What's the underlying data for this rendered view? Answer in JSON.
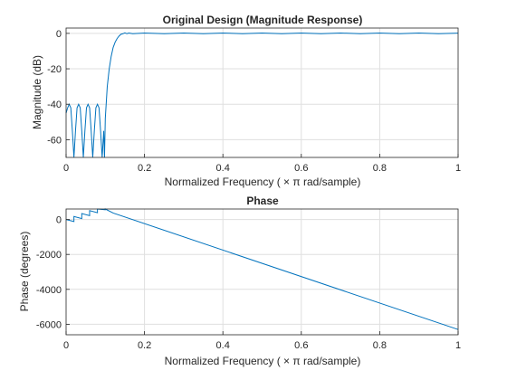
{
  "colors": {
    "series": "#0072bd",
    "axis": "#262626",
    "grid": "#dfdfdf"
  },
  "chart_data": [
    {
      "type": "line",
      "title": "Original Design (Magnitude Response)",
      "xlabel": "Normalized  Frequency    ( × π  rad/sample)",
      "ylabel": "Magnitude (dB)",
      "xlim": [
        0,
        1
      ],
      "ylim": [
        -70,
        3
      ],
      "xticks": [
        0,
        0.2,
        0.4,
        0.6,
        0.8,
        1
      ],
      "xtick_labels": [
        "0",
        "0.2",
        "0.4",
        "0.6",
        "0.8",
        "1"
      ],
      "yticks": [
        0,
        -20,
        -40,
        -60
      ],
      "ytick_labels": [
        "0",
        "-20",
        "-40",
        "-60"
      ],
      "grid": true,
      "series": [
        {
          "x": [
            0,
            0.004,
            0.008,
            0.012,
            0.016,
            0.02,
            0.024,
            0.028,
            0.032,
            0.036,
            0.04,
            0.044,
            0.048,
            0.052,
            0.056,
            0.06,
            0.064,
            0.068,
            0.072,
            0.076,
            0.08,
            0.084,
            0.088,
            0.092,
            0.096,
            0.098,
            0.1,
            0.105,
            0.11,
            0.115,
            0.12,
            0.125,
            0.13,
            0.135,
            0.14,
            0.145,
            0.15,
            0.155,
            0.16,
            0.17,
            0.2,
            0.25,
            0.3,
            0.35,
            0.4,
            0.45,
            0.5,
            0.55,
            0.6,
            0.65,
            0.7,
            0.75,
            0.8,
            0.85,
            0.9,
            0.95,
            1.0
          ],
          "y": [
            -45,
            -42,
            -40,
            -42,
            -55,
            -70,
            -55,
            -42,
            -40,
            -42,
            -55,
            -70,
            -55,
            -42,
            -40,
            -42,
            -55,
            -70,
            -55,
            -42,
            -40,
            -42,
            -55,
            -70,
            -55,
            -70,
            -48,
            -30,
            -20,
            -13,
            -8,
            -5,
            -3,
            -1.5,
            -0.5,
            -0.2,
            0.3,
            -0.2,
            0.2,
            -0.2,
            0.2,
            -0.2,
            0.2,
            -0.2,
            0.2,
            -0.2,
            0.2,
            -0.2,
            0.2,
            -0.2,
            0.2,
            -0.2,
            0.2,
            -0.2,
            0.2,
            -0.2,
            0.1
          ]
        }
      ]
    },
    {
      "type": "line",
      "title": "Phase",
      "xlabel": "Normalized  Frequency    ( × π  rad/sample)",
      "ylabel": "Phase (degrees)",
      "xlim": [
        0,
        1
      ],
      "ylim": [
        -6600,
        600
      ],
      "xticks": [
        0,
        0.2,
        0.4,
        0.6,
        0.8,
        1
      ],
      "xtick_labels": [
        "0",
        "0.2",
        "0.4",
        "0.6",
        "0.8",
        "1"
      ],
      "yticks": [
        0,
        -2000,
        -4000,
        -6000
      ],
      "ytick_labels": [
        "0",
        "-2000",
        "-4000",
        "-6000"
      ],
      "grid": true,
      "series": [
        {
          "x": [
            0,
            0.02,
            0.02,
            0.04,
            0.04,
            0.06,
            0.06,
            0.08,
            0.08,
            0.1,
            0.1,
            0.12,
            1.0
          ],
          "y": [
            0,
            -120,
            170,
            50,
            340,
            220,
            510,
            390,
            680,
            560,
            850,
            370,
            -6300
          ]
        }
      ]
    }
  ]
}
